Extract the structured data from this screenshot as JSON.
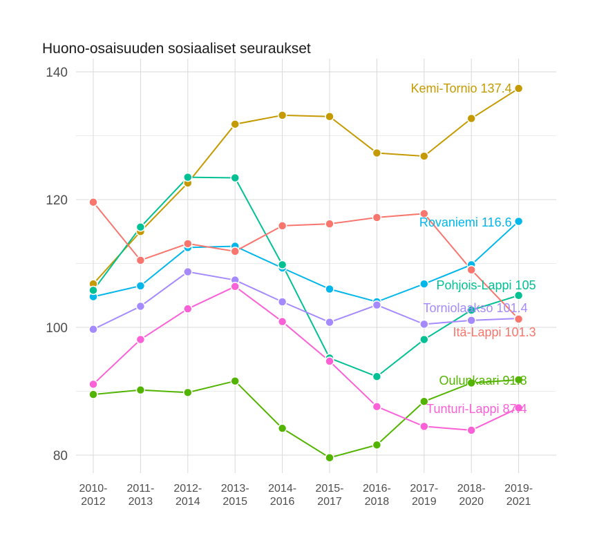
{
  "chart_data": {
    "type": "line",
    "title": "Huono-osaisuuden sosiaaliset seuraukset",
    "xlabel": "",
    "ylabel": "",
    "ylim": [
      77,
      141
    ],
    "yticks": [
      80,
      100,
      120,
      140
    ],
    "grid": true,
    "legend": "none (direct labels at line ends)",
    "categories": [
      "2010-\n2012",
      "2011-\n2013",
      "2012-\n2014",
      "2013-\n2015",
      "2014-\n2016",
      "2015-\n2017",
      "2016-\n2018",
      "2017-\n2019",
      "2018-\n2020",
      "2019-\n2021"
    ],
    "series": [
      {
        "name": "Kemi-Tornio",
        "end_label": "Kemi-Tornio 137.4",
        "color": "#C49A00",
        "values": [
          106.8,
          115.0,
          122.6,
          131.8,
          133.2,
          133.0,
          127.3,
          126.8,
          132.7,
          137.4
        ]
      },
      {
        "name": "Rovaniemi",
        "end_label": "Rovaniemi 116.6",
        "color": "#00B6EB",
        "values": [
          104.8,
          106.5,
          112.5,
          112.7,
          109.3,
          106.0,
          104.0,
          106.8,
          109.8,
          116.6
        ]
      },
      {
        "name": "Pohjois-Lappi",
        "end_label": "Pohjois-Lappi 105",
        "color": "#00C094",
        "values": [
          105.8,
          115.7,
          123.5,
          123.4,
          109.8,
          95.2,
          92.3,
          98.1,
          102.7,
          105.0
        ]
      },
      {
        "name": "Torniolaakso",
        "end_label": "Torniolaakso 101.4",
        "color": "#A58AFF",
        "values": [
          99.7,
          103.3,
          108.7,
          107.4,
          104.0,
          100.8,
          103.5,
          100.5,
          101.1,
          101.4
        ]
      },
      {
        "name": "Itä-Lappi",
        "end_label": "Itä-Lappi 101.3",
        "color": "#F8766D",
        "values": [
          119.6,
          110.5,
          113.1,
          111.9,
          115.9,
          116.2,
          117.2,
          117.8,
          109.0,
          101.3
        ]
      },
      {
        "name": "Oulunkaari",
        "end_label": "Oulunkaari 91.8",
        "color": "#53B400",
        "values": [
          89.5,
          90.2,
          89.8,
          91.6,
          84.2,
          79.6,
          81.6,
          88.4,
          91.3,
          91.8
        ]
      },
      {
        "name": "Tunturi-Lappi",
        "end_label": "Tunturi-Lappi 87.4",
        "color": "#FB61D7",
        "values": [
          91.1,
          98.1,
          102.9,
          106.4,
          100.9,
          94.7,
          87.6,
          84.5,
          83.9,
          87.4
        ]
      }
    ]
  }
}
